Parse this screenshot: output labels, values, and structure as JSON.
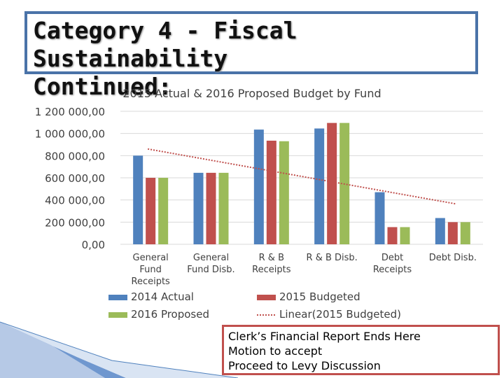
{
  "slide": {
    "title_line1": "Category 4 -  Fiscal Sustainability",
    "title_line2": "Continued:"
  },
  "note": {
    "lines": [
      "Clerk’s Financial Report Ends Here",
      "Motion to accept",
      "Proceed to Levy Discussion"
    ]
  },
  "colors": {
    "actual_2014": "#4f81bd",
    "budgeted_2015": "#c0504d",
    "proposed_2016": "#9bbb59",
    "trendline": "#c0504d",
    "title_border": "#4a73a8"
  },
  "chart_data": {
    "type": "bar",
    "title": "2015 Actual & 2016 Proposed Budget by Fund",
    "categories": [
      [
        "General",
        "Fund",
        "Receipts"
      ],
      [
        "General",
        "Fund Disb."
      ],
      [
        "R & B",
        "Receipts"
      ],
      [
        "R & B Disb."
      ],
      [
        "Debt",
        "Receipts"
      ],
      [
        "Debt Disb."
      ]
    ],
    "series": [
      {
        "name": "2014 Actual",
        "values": [
          800000,
          645000,
          1035000,
          1045000,
          470000,
          237000
        ]
      },
      {
        "name": "2015 Budgeted",
        "values": [
          600000,
          645000,
          935000,
          1095000,
          155000,
          200000
        ]
      },
      {
        "name": "2016 Proposed",
        "values": [
          600000,
          645000,
          930000,
          1095000,
          155000,
          200000
        ]
      }
    ],
    "trendline": {
      "name": "Linear(2015 Budgeted)",
      "start": 860000,
      "end": 365000
    },
    "ylim": [
      0,
      1200000
    ],
    "yticks": [
      0,
      200000,
      400000,
      600000,
      800000,
      1000000,
      1200000
    ],
    "ytick_labels": [
      "0,00",
      "200 000,00",
      "400 000,00",
      "600 000,00",
      "800 000,00",
      "1 000 000,00",
      "1 200 000,00"
    ],
    "grid": true,
    "legend": [
      "2014 Actual",
      "2015 Budgeted",
      "2016 Proposed",
      "Linear(2015 Budgeted)"
    ],
    "legend_position": "bottom"
  }
}
